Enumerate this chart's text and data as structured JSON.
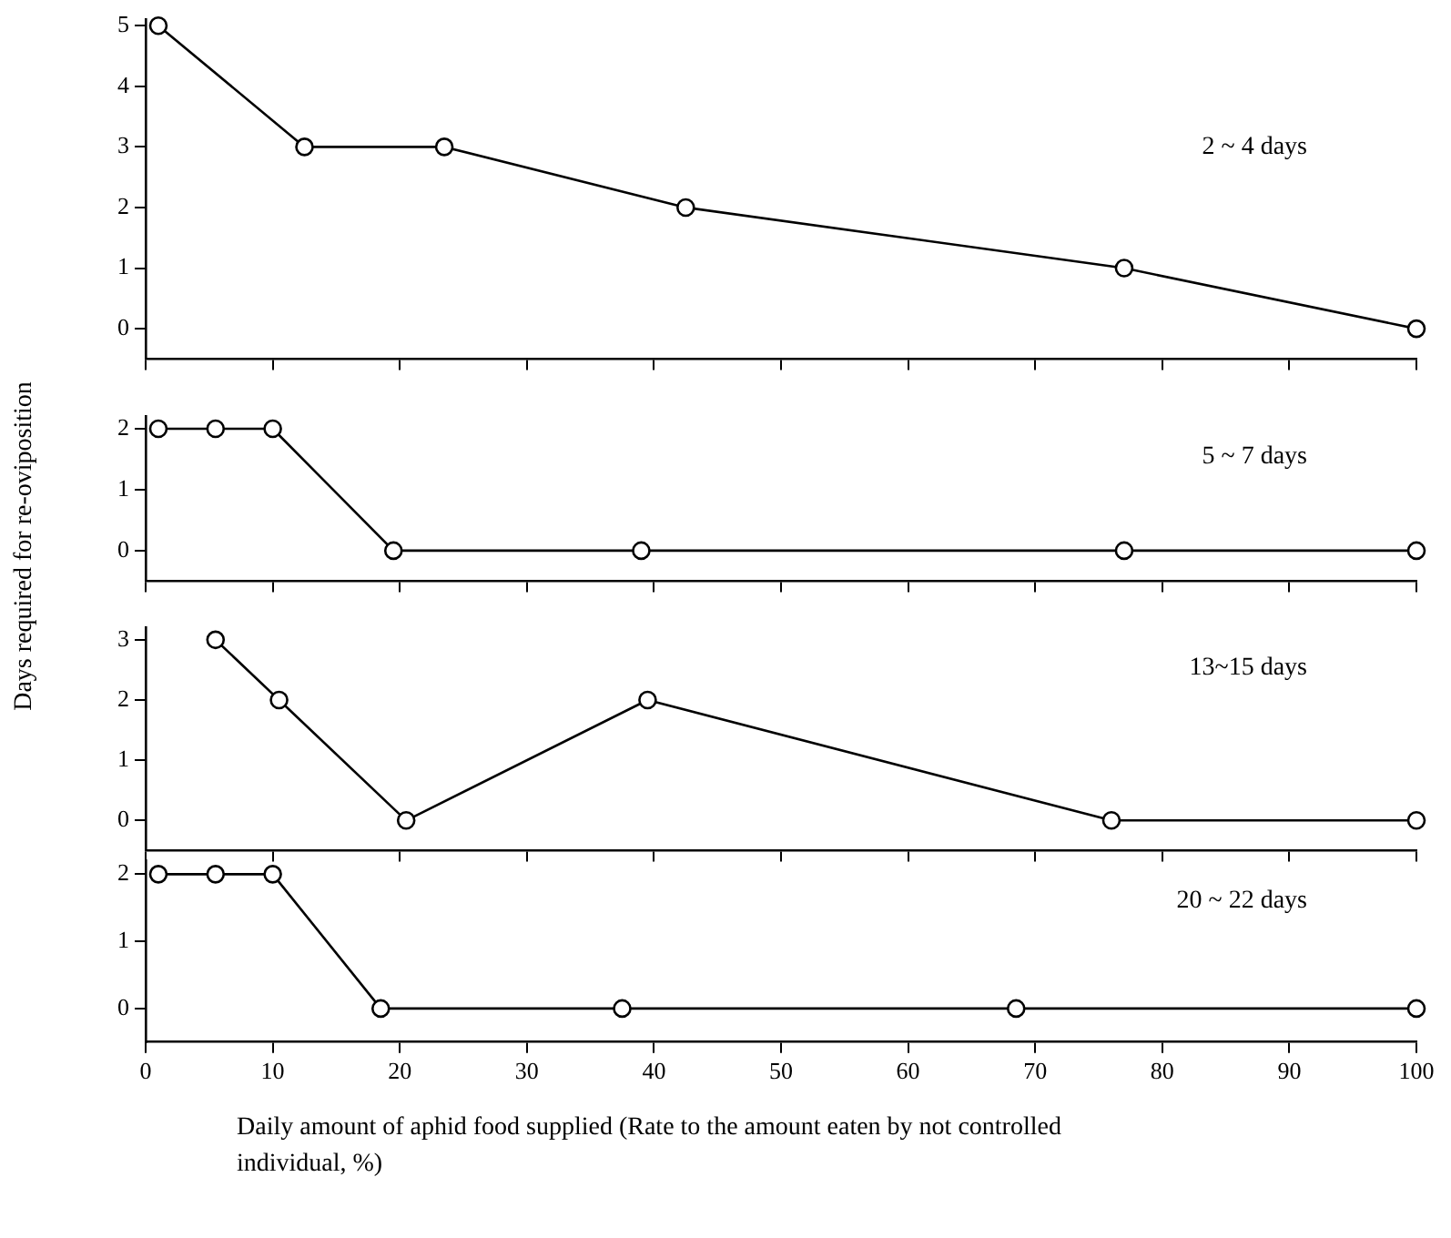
{
  "chart_data": [
    {
      "type": "line",
      "ylabel": "Days required for re-oviposition",
      "annotations": [
        "2 ~ 4 days"
      ],
      "x": [
        1,
        12.5,
        23.5,
        42.5,
        77,
        100
      ],
      "values": [
        5,
        3,
        3,
        2,
        1,
        0
      ],
      "color": "#000000",
      "marker": "circle",
      "line_style": "solid",
      "xlim": [
        0,
        100
      ],
      "xticks": [
        0,
        10,
        20,
        30,
        40,
        50,
        60,
        70,
        80,
        90,
        100
      ],
      "ylim": [
        -0.5,
        5.1
      ],
      "yticks": [
        0,
        1,
        2,
        3,
        4,
        5
      ],
      "tick_labels": "y",
      "grid": false,
      "legend": false
    },
    {
      "type": "line",
      "annotations": [
        "5 ~ 7 days"
      ],
      "x": [
        1,
        5.5,
        10,
        19.5,
        39,
        77,
        100
      ],
      "values": [
        2,
        2,
        2,
        0,
        0,
        0,
        0
      ],
      "color": "#000000",
      "marker": "circle",
      "line_style": "solid",
      "xlim": [
        0,
        100
      ],
      "xticks": [
        0,
        10,
        20,
        30,
        40,
        50,
        60,
        70,
        80,
        90,
        100
      ],
      "ylim": [
        -0.5,
        2.2
      ],
      "yticks": [
        0,
        1,
        2
      ],
      "tick_labels": "y",
      "grid": false,
      "legend": false
    },
    {
      "type": "line",
      "annotations": [
        "13~15 days"
      ],
      "x": [
        5.5,
        10.5,
        20.5,
        39.5,
        76,
        100
      ],
      "values": [
        3,
        2,
        0,
        2,
        0,
        0
      ],
      "color": "#000000",
      "marker": "circle",
      "line_style": "solid",
      "xlim": [
        0,
        100
      ],
      "xticks": [
        0,
        10,
        20,
        30,
        40,
        50,
        60,
        70,
        80,
        90,
        100
      ],
      "ylim": [
        -0.5,
        3.2
      ],
      "yticks": [
        0,
        1,
        2,
        3
      ],
      "tick_labels": "y",
      "grid": false,
      "legend": false
    },
    {
      "type": "line",
      "xlabel": "Daily amount of aphid food supplied (Rate to the amount eaten by not controlled individual, %)",
      "annotations": [
        "20 ~ 22 days"
      ],
      "x": [
        1,
        5.5,
        10,
        18.5,
        37.5,
        68.5,
        100
      ],
      "values": [
        2,
        2,
        2,
        0,
        0,
        0,
        0
      ],
      "color": "#000000",
      "marker": "circle",
      "line_style": "solid",
      "xlim": [
        0,
        100
      ],
      "xticks": [
        0,
        10,
        20,
        30,
        40,
        50,
        60,
        70,
        80,
        90,
        100
      ],
      "ylim": [
        -0.5,
        2.2
      ],
      "yticks": [
        0,
        1,
        2
      ],
      "grid": false,
      "legend": false
    }
  ]
}
